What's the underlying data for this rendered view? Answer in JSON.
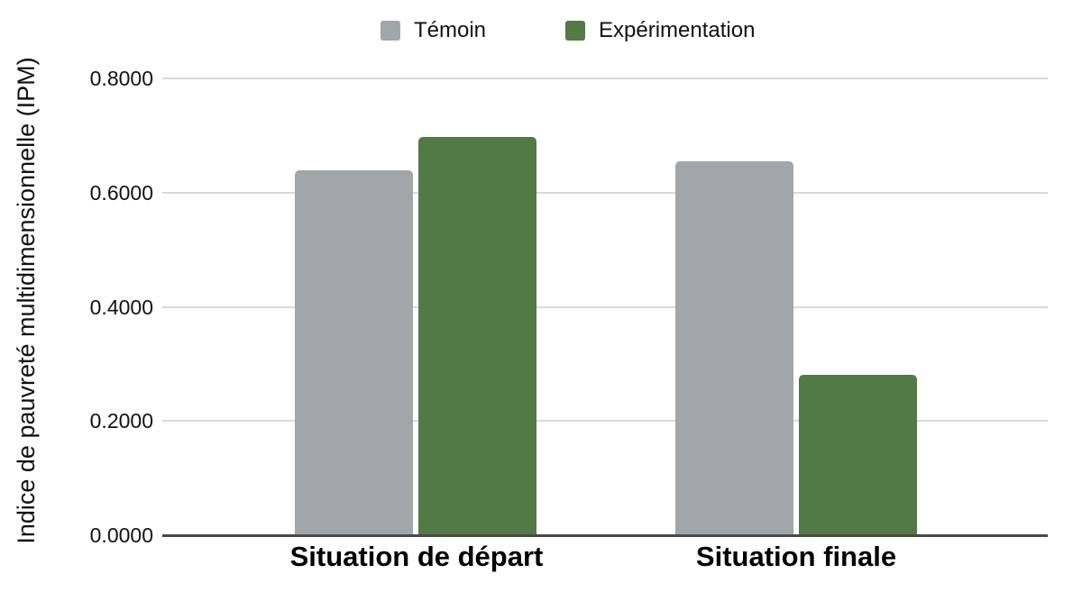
{
  "chart_data": {
    "type": "bar",
    "title": "",
    "ylabel": "Indice de pauvreté multidimensionnelle (IPM)",
    "xlabel": "",
    "categories": [
      "Situation de départ",
      "Situation finale"
    ],
    "series": [
      {
        "name": "Témoin",
        "color": "#a2a5a9",
        "values": [
          0.6375,
          0.6533
        ]
      },
      {
        "name": "Expérimentation",
        "color": "#527a44",
        "values": [
          0.6958,
          0.2793
        ]
      },
      {
        "name": "",
        "color": "",
        "values": []
      }
    ],
    "y_ticks": [
      {
        "label": "0.8000",
        "value": 0.8
      },
      {
        "label": "0.6000",
        "value": 0.6
      },
      {
        "label": "0.4000",
        "value": 0.4
      },
      {
        "label": "0.2000",
        "value": 0.2
      },
      {
        "label": "0.0000",
        "value": 0.0
      }
    ],
    "ylim": [
      0,
      0.8
    ],
    "grid": true,
    "legend_position": "top",
    "grid_color": "#d9d9d9",
    "axis_color": "#494949",
    "text_color": "#121212"
  }
}
